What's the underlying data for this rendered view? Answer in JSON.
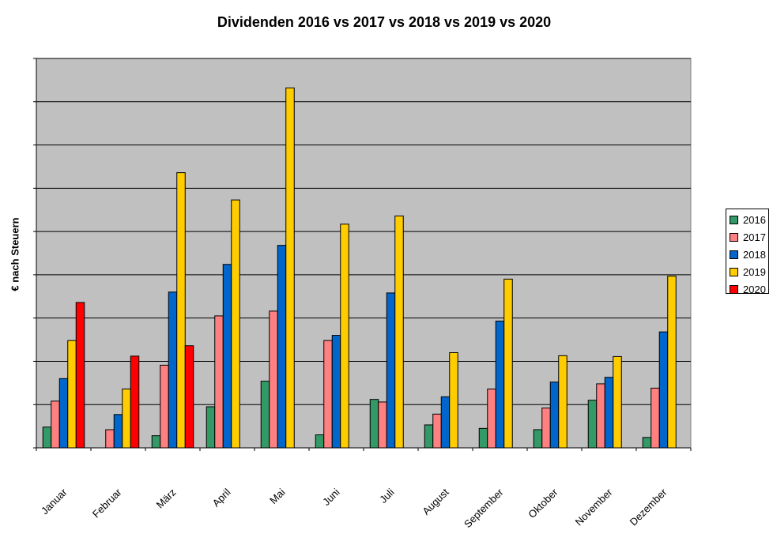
{
  "chart_data": {
    "type": "bar",
    "title": "Dividenden 2016 vs 2017 vs 2018 vs 2019 vs 2020",
    "ylabel": "€ nach Steuern",
    "xlabel": "",
    "categories": [
      "Januar",
      "Februar",
      "März",
      "April",
      "Mai",
      "Juni",
      "Juli",
      "August",
      "September",
      "Oktober",
      "November",
      "Dezember"
    ],
    "ylim": [
      0,
      9
    ],
    "grid": true,
    "legend_position": "right",
    "plot_background": "#c0c0c0",
    "series": [
      {
        "name": "2016",
        "color": "#339966",
        "values": [
          0.48,
          0,
          0.28,
          0.95,
          1.54,
          0.3,
          1.12,
          0.53,
          0.45,
          0.42,
          1.1,
          0.24
        ]
      },
      {
        "name": "2017",
        "color": "#ff8080",
        "values": [
          1.08,
          0.42,
          1.91,
          3.05,
          3.16,
          2.48,
          1.06,
          0.78,
          1.36,
          0.92,
          1.48,
          1.38
        ]
      },
      {
        "name": "2018",
        "color": "#0066cc",
        "values": [
          1.6,
          0.77,
          3.6,
          4.24,
          4.68,
          2.6,
          3.58,
          1.18,
          2.93,
          1.52,
          1.63,
          2.68
        ]
      },
      {
        "name": "2019",
        "color": "#ffcc00",
        "values": [
          2.48,
          1.36,
          6.36,
          5.73,
          8.32,
          5.17,
          5.36,
          2.2,
          3.9,
          2.13,
          2.11,
          3.97
        ]
      },
      {
        "name": "2020",
        "color": "#ff0000",
        "values": [
          3.36,
          2.12,
          2.36,
          null,
          null,
          null,
          null,
          null,
          null,
          null,
          null,
          null
        ]
      }
    ]
  }
}
